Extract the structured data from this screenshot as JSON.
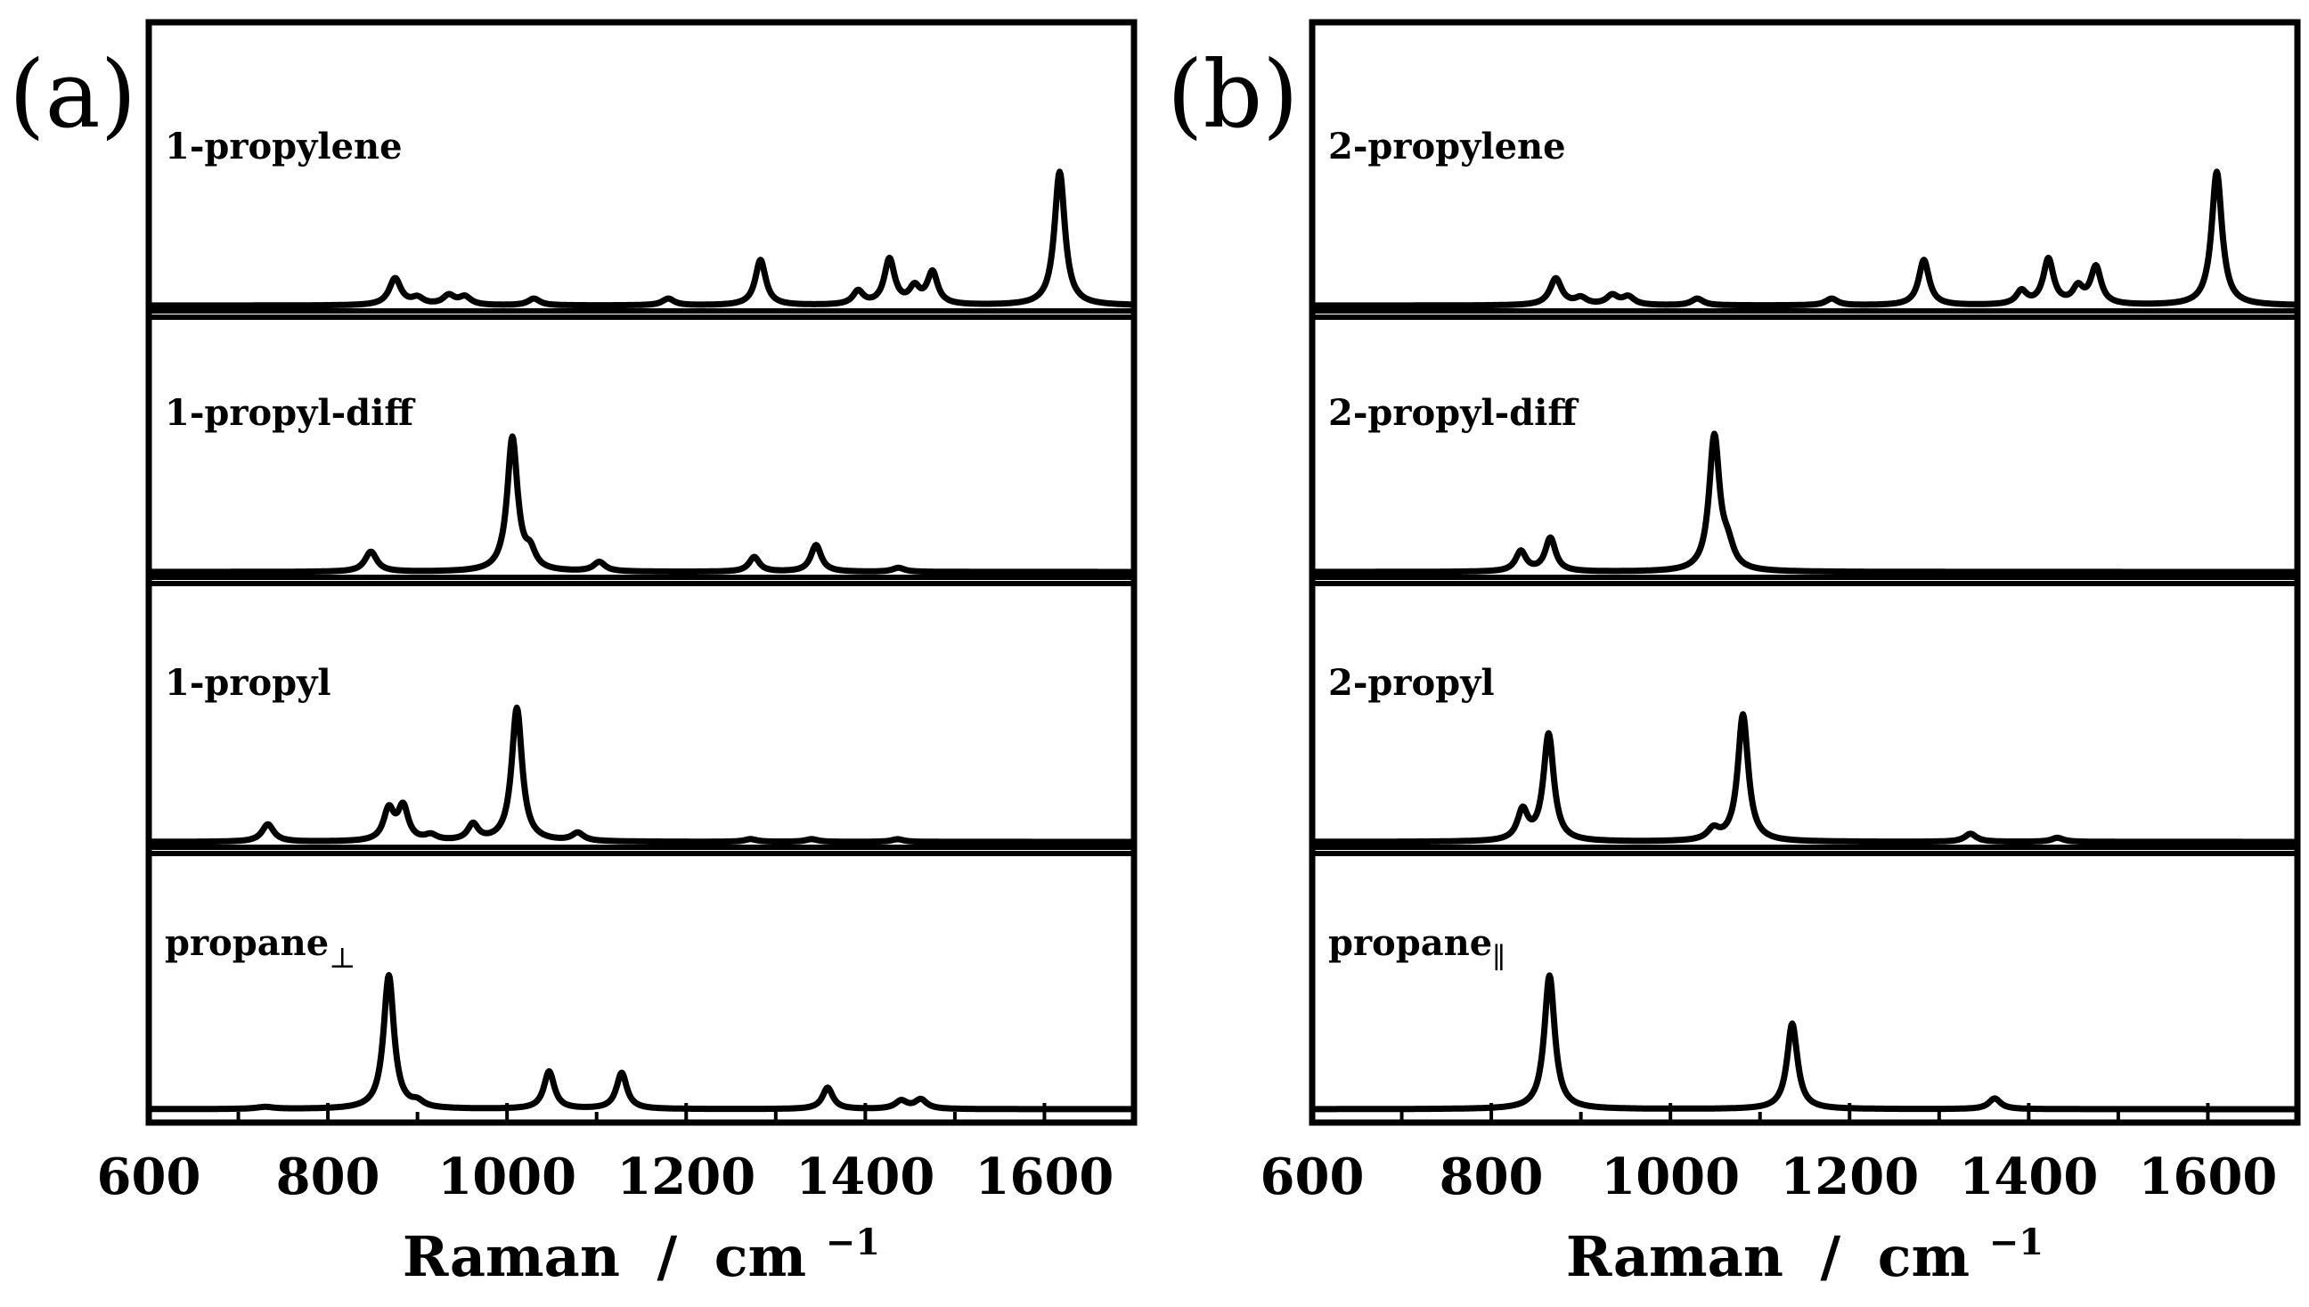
{
  "chart_data": [
    {
      "type": "line",
      "panel": "(a)",
      "xlabel": "Raman",
      "xunit": "cm",
      "xunit_exp": "−1",
      "xlim": [
        600,
        1700
      ],
      "xticks": [
        600,
        800,
        1000,
        1200,
        1400,
        1600
      ],
      "minor_step": 100,
      "series": [
        {
          "name": "1-propylene",
          "label_main": "1-propylene",
          "label_sub": "",
          "peaks": [
            [
              875,
              0.2,
              8
            ],
            [
              900,
              0.05,
              8
            ],
            [
              935,
              0.07,
              8
            ],
            [
              953,
              0.06,
              8
            ],
            [
              1030,
              0.05,
              8
            ],
            [
              1180,
              0.05,
              8
            ],
            [
              1283,
              0.34,
              7
            ],
            [
              1392,
              0.1,
              7
            ],
            [
              1427,
              0.34,
              7
            ],
            [
              1455,
              0.12,
              7
            ],
            [
              1475,
              0.24,
              7
            ],
            [
              1617,
              1.0,
              7
            ]
          ]
        },
        {
          "name": "1-propyl-diff",
          "label_main": "1-propyl-diff",
          "label_sub": "",
          "peaks": [
            [
              848,
              0.15,
              8
            ],
            [
              1006,
              1.0,
              7
            ],
            [
              1026,
              0.12,
              7
            ],
            [
              1103,
              0.07,
              8
            ],
            [
              1276,
              0.11,
              7
            ],
            [
              1345,
              0.2,
              7
            ],
            [
              1437,
              0.03,
              8
            ]
          ]
        },
        {
          "name": "1-propyl",
          "label_main": "1-propyl",
          "label_sub": "",
          "peaks": [
            [
              733,
              0.13,
              8
            ],
            [
              868,
              0.23,
              7
            ],
            [
              884,
              0.25,
              7
            ],
            [
              915,
              0.04,
              8
            ],
            [
              962,
              0.12,
              7
            ],
            [
              1011,
              1.0,
              7
            ],
            [
              1079,
              0.06,
              8
            ],
            [
              1272,
              0.02,
              8
            ],
            [
              1340,
              0.02,
              8
            ],
            [
              1436,
              0.02,
              8
            ]
          ]
        },
        {
          "name": "propane⊥",
          "label_main": "propane",
          "label_sub": "⊥",
          "peaks": [
            [
              730,
              0.015,
              12
            ],
            [
              868,
              1.0,
              7
            ],
            [
              900,
              0.04,
              8
            ],
            [
              1047,
              0.28,
              7
            ],
            [
              1128,
              0.27,
              7
            ],
            [
              1358,
              0.16,
              7
            ],
            [
              1440,
              0.06,
              8
            ],
            [
              1462,
              0.07,
              8
            ]
          ]
        }
      ]
    },
    {
      "type": "line",
      "panel": "(b)",
      "xlabel": "Raman",
      "xunit": "cm",
      "xunit_exp": "−1",
      "xlim": [
        600,
        1700
      ],
      "xticks": [
        600,
        800,
        1000,
        1200,
        1400,
        1600
      ],
      "minor_step": 100,
      "series": [
        {
          "name": "2-propylene",
          "label_main": "2-propylene",
          "label_sub": "",
          "peaks": [
            [
              872,
              0.2,
              8
            ],
            [
              900,
              0.05,
              8
            ],
            [
              935,
              0.07,
              8
            ],
            [
              953,
              0.06,
              8
            ],
            [
              1030,
              0.05,
              8
            ],
            [
              1180,
              0.05,
              8
            ],
            [
              1283,
              0.34,
              7
            ],
            [
              1392,
              0.1,
              7
            ],
            [
              1422,
              0.34,
              7
            ],
            [
              1455,
              0.12,
              7
            ],
            [
              1475,
              0.28,
              7
            ],
            [
              1610,
              1.0,
              7
            ]
          ]
        },
        {
          "name": "2-propyl-diff",
          "label_main": "2-propyl-diff",
          "label_sub": "",
          "peaks": [
            [
              833,
              0.15,
              7
            ],
            [
              866,
              0.25,
              7
            ],
            [
              1049,
              1.0,
              7
            ],
            [
              1064,
              0.15,
              8
            ]
          ]
        },
        {
          "name": "2-propyl",
          "label_main": "2-propyl",
          "label_sub": "",
          "peaks": [
            [
              835,
              0.22,
              7
            ],
            [
              864,
              0.8,
              7
            ],
            [
              1048,
              0.08,
              8
            ],
            [
              1081,
              0.95,
              7
            ],
            [
              1335,
              0.06,
              8
            ],
            [
              1432,
              0.03,
              8
            ]
          ]
        },
        {
          "name": "propane∥",
          "label_main": "propane",
          "label_sub": "∥",
          "peaks": [
            [
              865,
              1.0,
              7
            ],
            [
              1136,
              0.64,
              7
            ],
            [
              1362,
              0.08,
              8
            ]
          ]
        }
      ]
    }
  ],
  "panel_letters": {
    "a": "(a)",
    "b": "(b)"
  },
  "axis_title": {
    "separator": "/"
  }
}
